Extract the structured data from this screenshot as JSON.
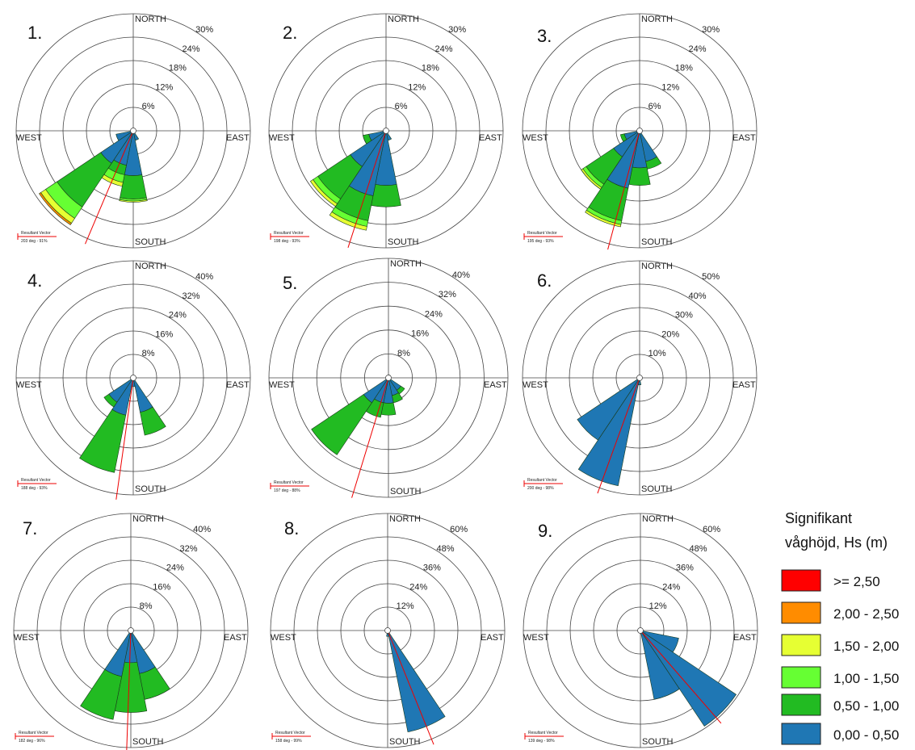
{
  "legend": {
    "title_line1": "Signifikant",
    "title_line2": "våghöjd, Hs (m)",
    "classes": [
      {
        "label": ">= 2,50",
        "color": "#ff0000"
      },
      {
        "label": "2,00 - 2,50",
        "color": "#ff8c00"
      },
      {
        "label": "1,50 - 2,00",
        "color": "#e6ff33"
      },
      {
        "label": "1,00 - 1,50",
        "color": "#66ff33"
      },
      {
        "label": "0,50 - 1,00",
        "color": "#22bb22"
      },
      {
        "label": "0,00 - 0,50",
        "color": "#1f77b4"
      }
    ]
  },
  "compass": {
    "north": "NORTH",
    "south": "SOUTH",
    "east": "EAST",
    "west": "WEST"
  },
  "resultant_vector_label": "Resultant Vector",
  "chart_data": [
    {
      "type": "wind-rose",
      "label": "1.",
      "ring_values": [
        6,
        12,
        18,
        24,
        30
      ],
      "ring_suffix": "%",
      "resultant": {
        "direction_deg": 203,
        "text": "203 deg - 91%"
      },
      "sectors": [
        {
          "dir": 157.5,
          "bands": [
            2.5
          ]
        },
        {
          "dir": 180,
          "bands": [
            11.5,
            6.0,
            0.5,
            0.3
          ]
        },
        {
          "dir": 202.5,
          "bands": [
            9.0,
            2.5,
            2.0,
            1.0
          ]
        },
        {
          "dir": 225,
          "bands": [
            10.0,
            13.5,
            3.5,
            1.5,
            0.5
          ]
        },
        {
          "dir": 247.5,
          "bands": [
            4.5
          ]
        }
      ]
    },
    {
      "type": "wind-rose",
      "label": "2.",
      "ring_values": [
        6,
        12,
        18,
        24,
        30
      ],
      "ring_suffix": "%",
      "resultant": {
        "direction_deg": 198,
        "text": "198 deg - 93%"
      },
      "sectors": [
        {
          "dir": 157.5,
          "bands": [
            2.5
          ]
        },
        {
          "dir": 180,
          "bands": [
            14.0,
            5.5
          ]
        },
        {
          "dir": 202.5,
          "bands": [
            17.0,
            6.5,
            1.5,
            1.0
          ]
        },
        {
          "dir": 225,
          "bands": [
            11.0,
            10.0,
            1.5,
            0.8
          ]
        },
        {
          "dir": 247.5,
          "bands": [
            4.5,
            1.5
          ]
        }
      ]
    },
    {
      "type": "wind-rose",
      "label": "3.",
      "ring_values": [
        6,
        12,
        18,
        24,
        30
      ],
      "ring_suffix": "%",
      "resultant": {
        "direction_deg": 195,
        "text": "195 deg - 93%"
      },
      "sectors": [
        {
          "dir": 157.5,
          "bands": [
            8.0,
            2.0
          ]
        },
        {
          "dir": 180,
          "bands": [
            9.5,
            4.5
          ]
        },
        {
          "dir": 202.5,
          "bands": [
            15.0,
            8.5,
            1.0,
            0.6
          ]
        },
        {
          "dir": 225,
          "bands": [
            8.0,
            8.5,
            1.0,
            0.5
          ]
        },
        {
          "dir": 247.5,
          "bands": [
            4.0,
            1.0
          ]
        }
      ]
    },
    {
      "type": "wind-rose",
      "label": "4.",
      "ring_values": [
        8,
        16,
        24,
        32,
        40
      ],
      "ring_suffix": "%",
      "resultant": {
        "direction_deg": 188,
        "text": "188 deg - 93%"
      },
      "sectors": [
        {
          "dir": 157.5,
          "bands": [
            12.0,
            8.0
          ]
        },
        {
          "dir": 180,
          "bands": [
            3.0
          ]
        },
        {
          "dir": 202.5,
          "bands": [
            13.0,
            20.0
          ]
        },
        {
          "dir": 225,
          "bands": [
            10.0,
            2.0
          ]
        }
      ]
    },
    {
      "type": "wind-rose",
      "label": "5.",
      "ring_values": [
        8,
        16,
        24,
        32,
        40
      ],
      "ring_suffix": "%",
      "resultant": {
        "direction_deg": 197,
        "text": "197 deg - 88%"
      },
      "sectors": [
        {
          "dir": 22.5,
          "bands": [
            0.5,
            0.5
          ]
        },
        {
          "dir": 135,
          "bands": [
            5.0,
            1.5
          ]
        },
        {
          "dir": 157.5,
          "bands": [
            6.0,
            2.5
          ]
        },
        {
          "dir": 180,
          "bands": [
            8.5,
            4.0
          ]
        },
        {
          "dir": 202.5,
          "bands": [
            8.5,
            5.0
          ]
        },
        {
          "dir": 225,
          "bands": [
            10.0,
            21.0
          ]
        }
      ]
    },
    {
      "type": "wind-rose",
      "label": "6.",
      "ring_values": [
        10,
        20,
        30,
        40,
        50
      ],
      "ring_suffix": "%",
      "resultant": {
        "direction_deg": 200,
        "text": "200 deg - 98%"
      },
      "sectors": [
        {
          "dir": 180,
          "bands": [
            3.0
          ]
        },
        {
          "dir": 202.5,
          "bands": [
            47.0
          ]
        },
        {
          "dir": 225,
          "bands": [
            32.0
          ]
        }
      ]
    },
    {
      "type": "wind-rose",
      "label": "7.",
      "ring_values": [
        8,
        16,
        24,
        32,
        40
      ],
      "ring_suffix": "%",
      "resultant": {
        "direction_deg": 182,
        "text": "182 deg - 96%"
      },
      "sectors": [
        {
          "dir": 157.5,
          "bands": [
            15.0,
            9.0
          ]
        },
        {
          "dir": 180,
          "bands": [
            11.0,
            17.0
          ]
        },
        {
          "dir": 202.5,
          "bands": [
            16.0,
            15.0
          ]
        }
      ]
    },
    {
      "type": "wind-rose",
      "label": "8.",
      "ring_values": [
        12,
        24,
        36,
        48,
        60
      ],
      "ring_suffix": "%",
      "resultant": {
        "direction_deg": 158,
        "text": "158 deg - 99%"
      },
      "sectors": [
        {
          "dir": 157.5,
          "bands": [
            53.0
          ]
        },
        {
          "dir": 180,
          "bands": [
            3.0
          ]
        }
      ]
    },
    {
      "type": "wind-rose",
      "label": "9.",
      "ring_values": [
        12,
        24,
        36,
        48,
        60
      ],
      "ring_suffix": "%",
      "resultant": {
        "direction_deg": 139,
        "text": "139 deg - 98%"
      },
      "sectors": [
        {
          "dir": 112.5,
          "bands": [
            20.0
          ]
        },
        {
          "dir": 135,
          "bands": [
            59.0
          ]
        },
        {
          "dir": 157.5,
          "bands": [
            36.0
          ]
        }
      ]
    }
  ]
}
